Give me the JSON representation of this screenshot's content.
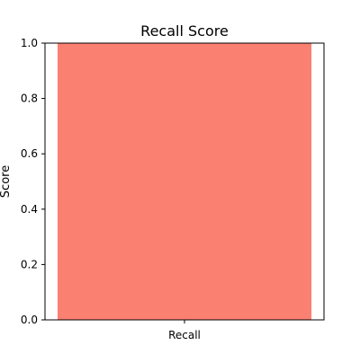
{
  "chart_data": {
    "type": "bar",
    "title": "Recall Score",
    "xlabel": "",
    "ylabel": "Score",
    "categories": [
      "Recall"
    ],
    "values": [
      1.0
    ],
    "ylim": [
      0,
      1.0
    ],
    "yticks": [
      "0.0",
      "0.2",
      "0.4",
      "0.6",
      "0.8",
      "1.0"
    ],
    "bar_color": "#fa8072",
    "grid": false,
    "legend": "none"
  }
}
